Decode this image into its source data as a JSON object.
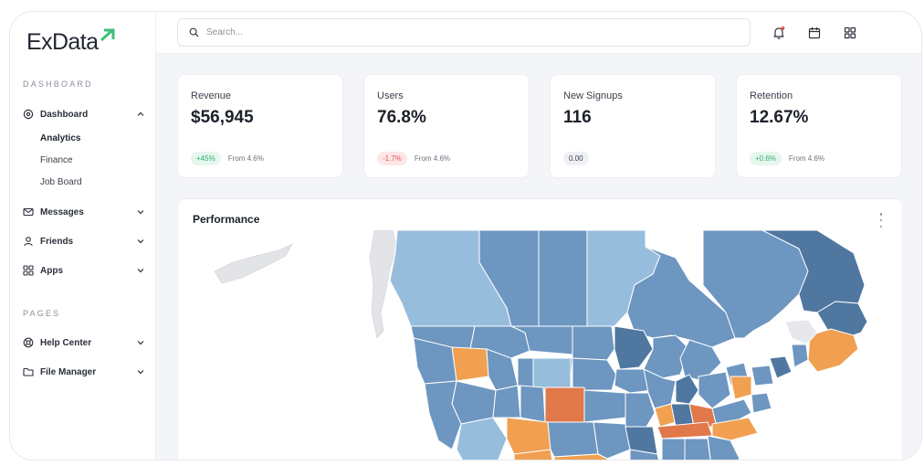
{
  "app": {
    "logo_text": "ExData"
  },
  "sidebar": {
    "section_dashboard": "DASHBOARD",
    "section_pages": "PAGES",
    "dashboard_label": "Dashboard",
    "subitems": [
      "Analytics",
      "Finance",
      "Job Board"
    ],
    "messages_label": "Messages",
    "friends_label": "Friends",
    "apps_label": "Apps",
    "help_center_label": "Help Center",
    "file_manager_label": "File Manager"
  },
  "topbar": {
    "search_placeholder": "Search..."
  },
  "stats": [
    {
      "label": "Revenue",
      "value": "$56,945",
      "badge": "+45%",
      "from": "From 4.6%",
      "trend": "up"
    },
    {
      "label": "Users",
      "value": "76.8%",
      "badge": "-1.7%",
      "from": "From 4.6%",
      "trend": "down"
    },
    {
      "label": "New Signups",
      "value": "116",
      "badge": "0.00",
      "from": "",
      "trend": "neutral"
    },
    {
      "label": "Retention",
      "value": "12.67%",
      "badge": "+0.6%",
      "from": "From 4.6%",
      "trend": "up"
    }
  ],
  "performance": {
    "title": "Performance"
  },
  "colors": {
    "accent_green": "#3ebf7a",
    "map_blue": "#6d96c0",
    "map_light_blue": "#97bddd",
    "map_dark_blue": "#4f77a0",
    "map_orange": "#f0a050",
    "map_dark_orange": "#e0784a"
  }
}
